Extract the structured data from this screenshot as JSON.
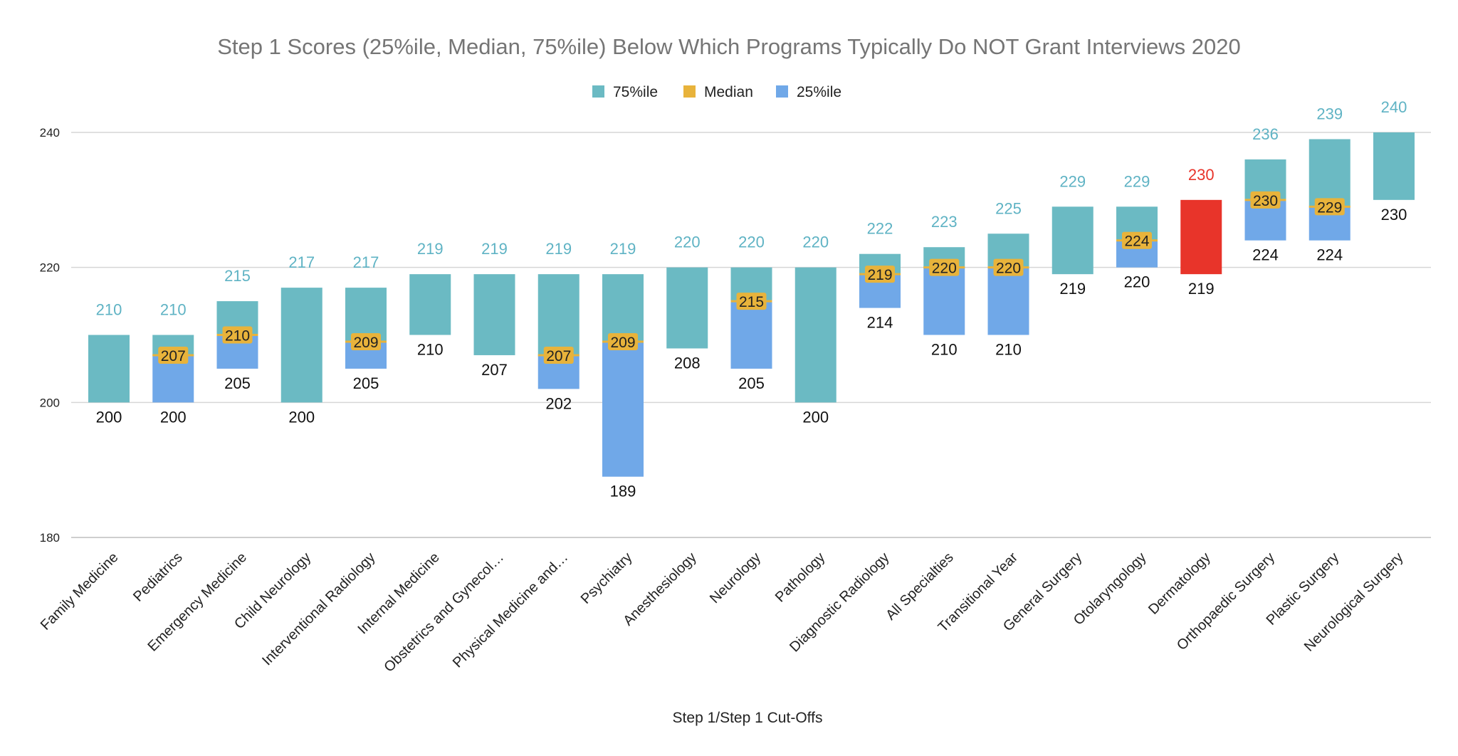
{
  "chart_data": {
    "type": "bar",
    "title": "Step 1 Scores (25%ile, Median, 75%ile) Below Which Programs Typically Do NOT Grant Interviews 2020",
    "xlabel": "Step 1/Step 1 Cut-Offs",
    "ylabel": "",
    "ylim": [
      180,
      240
    ],
    "yticks": [
      180,
      200,
      220,
      240
    ],
    "grid": true,
    "legend_position": "top-center",
    "legend": [
      {
        "name": "75%ile",
        "color": "#6bbac3"
      },
      {
        "name": "Median",
        "color": "#e8b33b"
      },
      {
        "name": "25%ile",
        "color": "#70a8e8"
      }
    ],
    "categories": [
      "Family Medicine",
      "Pediatrics",
      "Emergency Medicine",
      "Child Neurology",
      "Interventional Radiology",
      "Internal Medicine",
      "Obstetrics and Gynecol…",
      "Physical Medicine and…",
      "Psychiatry",
      "Anesthesiology",
      "Neurology",
      "Pathology",
      "Diagnostic Radiology",
      "All Specialties",
      "Transitional Year",
      "General Surgery",
      "Otolaryngology",
      "Dermatology",
      "Orthopaedic Surgery",
      "Plastic Surgery",
      "Neurological Surgery"
    ],
    "series": [
      {
        "name": "25%ile",
        "values": [
          null,
          200,
          205,
          null,
          205,
          null,
          null,
          202,
          189,
          null,
          205,
          null,
          214,
          210,
          210,
          null,
          220,
          null,
          224,
          224,
          null
        ]
      },
      {
        "name": "Median",
        "values": [
          null,
          207,
          210,
          null,
          209,
          null,
          null,
          207,
          209,
          null,
          215,
          null,
          219,
          220,
          220,
          null,
          224,
          null,
          230,
          229,
          null
        ]
      },
      {
        "name": "75%ile",
        "values": [
          210,
          210,
          215,
          217,
          217,
          219,
          219,
          219,
          219,
          220,
          220,
          220,
          222,
          223,
          225,
          229,
          229,
          230,
          236,
          239,
          240
        ]
      }
    ],
    "bar_bottom_labels": [
      200,
      200,
      205,
      200,
      205,
      210,
      207,
      202,
      189,
      208,
      205,
      200,
      214,
      210,
      210,
      219,
      220,
      219,
      224,
      224,
      230
    ],
    "bar_ranges": [
      [
        200,
        210
      ],
      [
        200,
        210
      ],
      [
        205,
        215
      ],
      [
        200,
        217
      ],
      [
        205,
        217
      ],
      [
        210,
        219
      ],
      [
        207,
        219
      ],
      [
        202,
        219
      ],
      [
        189,
        219
      ],
      [
        208,
        220
      ],
      [
        205,
        220
      ],
      [
        200,
        220
      ],
      [
        214,
        222
      ],
      [
        210,
        223
      ],
      [
        210,
        225
      ],
      [
        219,
        229
      ],
      [
        220,
        229
      ],
      [
        219,
        230
      ],
      [
        224,
        236
      ],
      [
        224,
        239
      ],
      [
        230,
        240
      ]
    ],
    "highlight": {
      "category": "Dermatology",
      "color": "#e8342a"
    },
    "top_label_color": "#5fb3c4",
    "highlight_label_color": "#e8342a"
  }
}
